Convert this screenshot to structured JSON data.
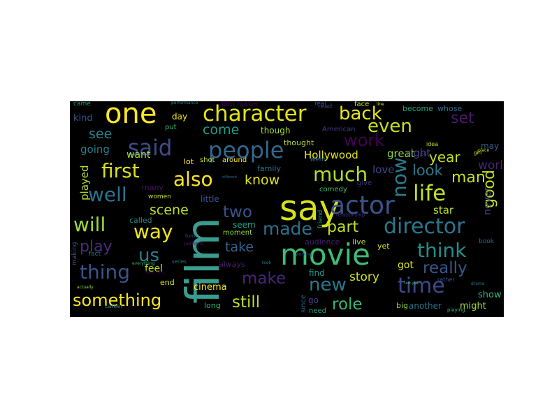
{
  "background_color": "#000000",
  "words": [
    {
      "text": "film",
      "weight": 1.0,
      "color": "#3b9b8e",
      "rot": -90
    },
    {
      "text": "say",
      "weight": 0.92,
      "color": "#d5e21a"
    },
    {
      "text": "movie",
      "weight": 0.85,
      "color": "#3fbc73"
    },
    {
      "text": "one",
      "weight": 0.82,
      "color": "#fde725"
    },
    {
      "text": "actor",
      "weight": 0.78,
      "color": "#3a538b"
    },
    {
      "text": "people",
      "weight": 0.66,
      "color": "#31688e"
    },
    {
      "text": "character",
      "weight": 0.62,
      "color": "#e3e418"
    },
    {
      "text": "said",
      "weight": 0.64,
      "color": "#3e4c8a"
    },
    {
      "text": "director",
      "weight": 0.6,
      "color": "#2a788e"
    },
    {
      "text": "life",
      "weight": 0.62,
      "color": "#c2df23"
    },
    {
      "text": "time",
      "weight": 0.6,
      "color": "#3e4989"
    },
    {
      "text": "much",
      "weight": 0.55,
      "color": "#b4de2c"
    },
    {
      "text": "also",
      "weight": 0.55,
      "color": "#fde725"
    },
    {
      "text": "first",
      "weight": 0.55,
      "color": "#d8e219"
    },
    {
      "text": "well",
      "weight": 0.55,
      "color": "#2c728e"
    },
    {
      "text": "will",
      "weight": 0.55,
      "color": "#9fda3a"
    },
    {
      "text": "way",
      "weight": 0.55,
      "color": "#f1e51d"
    },
    {
      "text": "thing",
      "weight": 0.55,
      "color": "#3b528b"
    },
    {
      "text": "think",
      "weight": 0.55,
      "color": "#21918c"
    },
    {
      "text": "made",
      "weight": 0.5,
      "color": "#2d708e"
    },
    {
      "text": "now",
      "weight": 0.55,
      "color": "#287c8e",
      "rot": -90
    },
    {
      "text": "even",
      "weight": 0.5,
      "color": "#c8e020"
    },
    {
      "text": "back",
      "weight": 0.5,
      "color": "#e7e419"
    },
    {
      "text": "work",
      "weight": 0.48,
      "color": "#440154"
    },
    {
      "text": "us",
      "weight": 0.5,
      "color": "#27808e"
    },
    {
      "text": "make",
      "weight": 0.45,
      "color": "#482677"
    },
    {
      "text": "new",
      "weight": 0.5,
      "color": "#2a788e"
    },
    {
      "text": "something",
      "weight": 0.48,
      "color": "#f8e621"
    },
    {
      "text": "still",
      "weight": 0.45,
      "color": "#bade28"
    },
    {
      "text": "role",
      "weight": 0.45,
      "color": "#35b779"
    },
    {
      "text": "really",
      "weight": 0.45,
      "color": "#39568c"
    },
    {
      "text": "two",
      "weight": 0.45,
      "color": "#3a548c"
    },
    {
      "text": "part",
      "weight": 0.42,
      "color": "#c0df25"
    },
    {
      "text": "know",
      "weight": 0.38,
      "color": "#e1e31b"
    },
    {
      "text": "come",
      "weight": 0.38,
      "color": "#1e9d89"
    },
    {
      "text": "see",
      "weight": 0.38,
      "color": "#277f8e"
    },
    {
      "text": "look",
      "weight": 0.4,
      "color": "#2a788e"
    },
    {
      "text": "year",
      "weight": 0.38,
      "color": "#c2df23"
    },
    {
      "text": "man",
      "weight": 0.4,
      "color": "#c8e020"
    },
    {
      "text": "good",
      "weight": 0.42,
      "color": "#c0df25",
      "rot": -90
    },
    {
      "text": "set",
      "weight": 0.42,
      "color": "#481a6c"
    },
    {
      "text": "play",
      "weight": 0.42,
      "color": "#472d7b"
    },
    {
      "text": "take",
      "weight": 0.36,
      "color": "#34618d"
    },
    {
      "text": "scene",
      "weight": 0.35,
      "color": "#bddf26"
    },
    {
      "text": "story",
      "weight": 0.32,
      "color": "#d0e11c"
    },
    {
      "text": "world",
      "weight": 0.32,
      "color": "#482475"
    },
    {
      "text": "love",
      "weight": 0.28,
      "color": "#3f4788"
    },
    {
      "text": "star",
      "weight": 0.28,
      "color": "#c2df23"
    },
    {
      "text": "Hollywood",
      "weight": 0.28,
      "color": "#e2e418"
    },
    {
      "text": "going",
      "weight": 0.28,
      "color": "#277f8e"
    },
    {
      "text": "great",
      "weight": 0.28,
      "color": "#8bd646"
    },
    {
      "text": "right",
      "weight": 0.28,
      "color": "#3e4989"
    },
    {
      "text": "want",
      "weight": 0.26,
      "color": "#a5db36"
    },
    {
      "text": "played",
      "weight": 0.28,
      "color": "#b5de2b",
      "rot": -90
    },
    {
      "text": "never",
      "weight": 0.26,
      "color": "#3d4d8a",
      "rot": -90
    },
    {
      "text": "cinema",
      "weight": 0.25,
      "color": "#f8e621"
    },
    {
      "text": "got",
      "weight": 0.26,
      "color": "#e1e31b"
    },
    {
      "text": "feel",
      "weight": 0.26,
      "color": "#b8de29"
    },
    {
      "text": "seem",
      "weight": 0.22,
      "color": "#20a486"
    },
    {
      "text": "find",
      "weight": 0.24,
      "color": "#1f968b"
    },
    {
      "text": "show",
      "weight": 0.24,
      "color": "#35b779"
    },
    {
      "text": "might",
      "weight": 0.24,
      "color": "#a2da37"
    },
    {
      "text": "another",
      "weight": 0.22,
      "color": "#2c728e"
    },
    {
      "text": "big",
      "weight": 0.22,
      "color": "#8bd646"
    },
    {
      "text": "audience",
      "weight": 0.22,
      "color": "#482173"
    },
    {
      "text": "live",
      "weight": 0.2,
      "color": "#b5de2b"
    },
    {
      "text": "yet",
      "weight": 0.2,
      "color": "#dae319"
    },
    {
      "text": "end",
      "weight": 0.2,
      "color": "#dfe318"
    },
    {
      "text": "long",
      "weight": 0.2,
      "color": "#32b67a"
    },
    {
      "text": "little",
      "weight": 0.22,
      "color": "#3b528b"
    },
    {
      "text": "family",
      "weight": 0.2,
      "color": "#2c728e"
    },
    {
      "text": "lot",
      "weight": 0.2,
      "color": "#fde725"
    },
    {
      "text": "day",
      "weight": 0.2,
      "color": "#f1e51d"
    },
    {
      "text": "kind",
      "weight": 0.2,
      "color": "#3a538b"
    },
    {
      "text": "come2",
      "weight": 0.0,
      "color": "#000000",
      "hidden": true
    },
    {
      "text": "film maker",
      "weight": 0.18,
      "color": "#440154"
    },
    {
      "text": "become",
      "weight": 0.2,
      "color": "#20a386"
    },
    {
      "text": "whose",
      "weight": 0.2,
      "color": "#2f6c8e"
    },
    {
      "text": "face",
      "weight": 0.18,
      "color": "#b8de29"
    },
    {
      "text": "though",
      "weight": 0.2,
      "color": "#a8db34"
    },
    {
      "text": "thought",
      "weight": 0.18,
      "color": "#b5de2b"
    },
    {
      "text": "American",
      "weight": 0.18,
      "color": "#453882"
    },
    {
      "text": "around",
      "weight": 0.18,
      "color": "#fde725"
    },
    {
      "text": "shot",
      "weight": 0.18,
      "color": "#c2df23"
    },
    {
      "text": "may",
      "weight": 0.2,
      "color": "#355f8d"
    },
    {
      "text": "many",
      "weight": 0.18,
      "color": "#471365"
    },
    {
      "text": "put",
      "weight": 0.16,
      "color": "#35b779"
    },
    {
      "text": "came",
      "weight": 0.16,
      "color": "#1f968b"
    },
    {
      "text": "called",
      "weight": 0.16,
      "color": "#23898e"
    },
    {
      "text": "women",
      "weight": 0.14,
      "color": "#c8e020"
    },
    {
      "text": "comedy",
      "weight": 0.16,
      "color": "#3fbc73"
    },
    {
      "text": "give",
      "weight": 0.16,
      "color": "#46337f"
    },
    {
      "text": "moment",
      "weight": 0.16,
      "color": "#8fd744"
    },
    {
      "text": "always",
      "weight": 0.16,
      "color": "#481f70"
    },
    {
      "text": "since",
      "weight": 0.16,
      "color": "#32658e",
      "rot": -90
    },
    {
      "text": "go",
      "weight": 0.16,
      "color": "#433e85"
    },
    {
      "text": "need",
      "weight": 0.16,
      "color": "#20a386"
    },
    {
      "text": "fact",
      "weight": 0.14,
      "color": "#2d708e"
    },
    {
      "text": "making",
      "weight": 0.14,
      "color": "#3b528b",
      "rot": -90
    },
    {
      "text": "career",
      "weight": 0.12,
      "color": "#277f8e"
    },
    {
      "text": "performance",
      "weight": 0.1,
      "color": "#277f8e"
    },
    {
      "text": "rather",
      "weight": 0.12,
      "color": "#3b528b"
    },
    {
      "text": "book",
      "weight": 0.14,
      "color": "#31688e"
    },
    {
      "text": "idea",
      "weight": 0.12,
      "color": "#b8de29"
    },
    {
      "text": "friend",
      "weight": 0.14,
      "color": "#1e9b8a",
      "rot": -90
    },
    {
      "text": "relationship",
      "weight": 0.1,
      "color": "#46337f"
    },
    {
      "text": "playing",
      "weight": 0.1,
      "color": "#3fbc73"
    },
    {
      "text": "series",
      "weight": 0.1,
      "color": "#2a788e"
    },
    {
      "text": "perhaps",
      "weight": 0.1,
      "color": "#471063"
    },
    {
      "text": "New York",
      "weight": 0.08,
      "color": "#440154"
    },
    {
      "text": "everything",
      "weight": 0.08,
      "color": "#35b779"
    },
    {
      "text": "actually",
      "weight": 0.08,
      "color": "#8bd646"
    },
    {
      "text": "working",
      "weight": 0.08,
      "color": "#3b528b"
    },
    {
      "text": "turn",
      "weight": 0.1,
      "color": "#3f4788"
    },
    {
      "text": "different",
      "weight": 0.07,
      "color": "#31688e"
    },
    {
      "text": "drama",
      "weight": 0.08,
      "color": "#2a788e"
    },
    {
      "text": "went",
      "weight": 0.1,
      "color": "#2f6c8e"
    },
    {
      "text": "last year",
      "weight": 0.06,
      "color": "#3fbc73"
    },
    {
      "text": "read",
      "weight": 0.08,
      "color": "#404387"
    },
    {
      "text": "took",
      "weight": 0.08,
      "color": "#2a788e"
    },
    {
      "text": "girl",
      "weight": 0.08,
      "color": "#fde725"
    },
    {
      "text": "place",
      "weight": 0.07,
      "color": "#c8e020"
    },
    {
      "text": "job",
      "weight": 0.08,
      "color": "#472f7d"
    },
    {
      "text": "line",
      "weight": 0.06,
      "color": "#d5e21a"
    },
    {
      "text": "real",
      "weight": 0.12,
      "color": "#3b528b"
    }
  ]
}
